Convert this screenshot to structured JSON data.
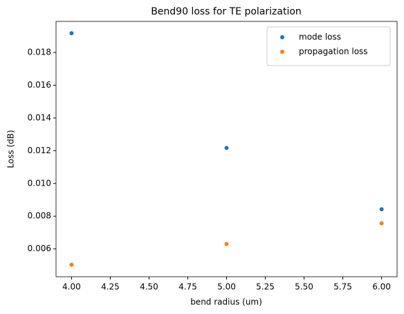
{
  "chart_data": {
    "type": "scatter",
    "title": "Bend90 loss for TE polarization",
    "x_label": "bend radius (um)",
    "y_label": "Loss (dB)",
    "series": [
      {
        "name": "mode loss",
        "color": "#1f77b4",
        "x": [
          4,
          5,
          6
        ],
        "values": [
          0.01918,
          0.01217,
          0.00842
        ]
      },
      {
        "name": "propagation loss",
        "color": "#ff7f0e",
        "x": [
          4,
          5,
          6
        ],
        "values": [
          0.00503,
          0.0063,
          0.00756
        ]
      }
    ],
    "xlim": [
      3.9,
      6.1
    ],
    "ylim": [
      0.0043,
      0.0199
    ],
    "xticks": [
      {
        "value": 4,
        "label": "4.00"
      },
      {
        "value": 4.25,
        "label": "4.25"
      },
      {
        "value": 4.5,
        "label": "4.50"
      },
      {
        "value": 4.75,
        "label": "4.75"
      },
      {
        "value": 5,
        "label": "5.00"
      },
      {
        "value": 5.25,
        "label": "5.25"
      },
      {
        "value": 5.5,
        "label": "5.50"
      },
      {
        "value": 5.75,
        "label": "5.75"
      },
      {
        "value": 6,
        "label": "6.00"
      }
    ],
    "yticks": [
      {
        "value": 0.006,
        "label": "0.006"
      },
      {
        "value": 0.008,
        "label": "0.008"
      },
      {
        "value": 0.01,
        "label": "0.010"
      },
      {
        "value": 0.012,
        "label": "0.012"
      },
      {
        "value": 0.014,
        "label": "0.014"
      },
      {
        "value": 0.016,
        "label": "0.016"
      },
      {
        "value": 0.018,
        "label": "0.018"
      }
    ],
    "legend": "upper right"
  }
}
